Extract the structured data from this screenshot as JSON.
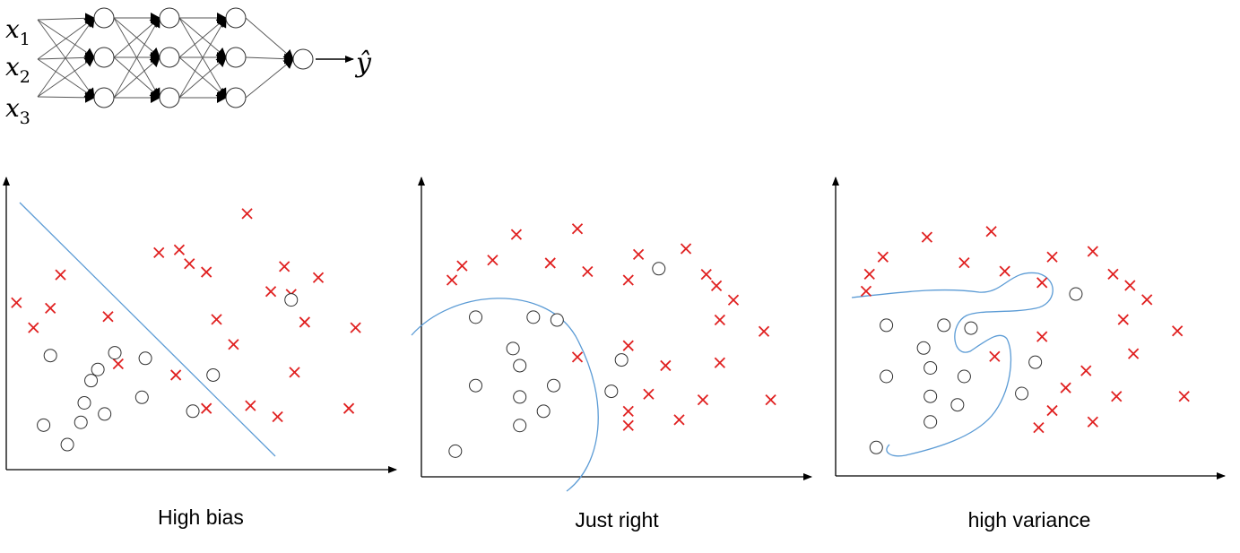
{
  "network": {
    "inputs": [
      {
        "var": "x",
        "sub": "1"
      },
      {
        "var": "x",
        "sub": "2"
      },
      {
        "var": "x",
        "sub": "3"
      }
    ],
    "output": "ŷ",
    "hidden_layer_sizes": [
      3,
      3,
      3
    ],
    "output_layer_size": 1
  },
  "panels": [
    {
      "caption": "High bias",
      "boundary": "linear",
      "crosses": [
        [
          45,
          78
        ],
        [
          16,
          70
        ],
        [
          30,
          55
        ],
        [
          51,
          79
        ],
        [
          33,
          38
        ],
        [
          54,
          74
        ],
        [
          71,
          92
        ],
        [
          59,
          71
        ],
        [
          62,
          54
        ],
        [
          78,
          64
        ],
        [
          82,
          73
        ],
        [
          92,
          69
        ],
        [
          84,
          63
        ],
        [
          88,
          53
        ],
        [
          103,
          51
        ],
        [
          67,
          45
        ],
        [
          50,
          34
        ],
        [
          85,
          35
        ],
        [
          72,
          23
        ],
        [
          101,
          22
        ],
        [
          59,
          22
        ],
        [
          80,
          19
        ],
        [
          8,
          51
        ],
        [
          3,
          60
        ],
        [
          13,
          58
        ]
      ],
      "circles": [
        [
          13,
          41
        ],
        [
          32,
          42
        ],
        [
          41,
          40
        ],
        [
          25,
          32
        ],
        [
          23,
          24
        ],
        [
          11,
          16
        ],
        [
          40,
          26
        ],
        [
          29,
          20
        ],
        [
          55,
          21
        ],
        [
          27,
          36
        ],
        [
          22,
          17
        ],
        [
          61,
          34
        ],
        [
          84,
          61
        ],
        [
          18,
          9
        ]
      ]
    },
    {
      "caption": "Just right",
      "boundary": "curved",
      "crosses": [
        [
          28,
          85
        ],
        [
          46,
          87
        ],
        [
          21,
          76
        ],
        [
          12,
          74
        ],
        [
          38,
          75
        ],
        [
          49,
          72
        ],
        [
          61,
          69
        ],
        [
          64,
          78
        ],
        [
          78,
          80
        ],
        [
          84,
          71
        ],
        [
          87,
          67
        ],
        [
          92,
          62
        ],
        [
          88,
          55
        ],
        [
          101,
          51
        ],
        [
          61,
          46
        ],
        [
          46,
          42
        ],
        [
          88,
          40
        ],
        [
          72,
          39
        ],
        [
          67,
          29
        ],
        [
          83,
          27
        ],
        [
          103,
          27
        ],
        [
          61,
          23
        ],
        [
          76,
          20
        ],
        [
          61,
          18
        ],
        [
          9,
          69
        ]
      ],
      "circles": [
        [
          16,
          56
        ],
        [
          33,
          56
        ],
        [
          40,
          55
        ],
        [
          27,
          45
        ],
        [
          29,
          39
        ],
        [
          16,
          32
        ],
        [
          39,
          32
        ],
        [
          29,
          28
        ],
        [
          59,
          41
        ],
        [
          36,
          23
        ],
        [
          70,
          73
        ],
        [
          29,
          18
        ],
        [
          10,
          9
        ],
        [
          56,
          30
        ]
      ]
    },
    {
      "caption": "high variance",
      "boundary": "wiggly",
      "crosses": [
        [
          27,
          84
        ],
        [
          46,
          86
        ],
        [
          14,
          77
        ],
        [
          10,
          71
        ],
        [
          38,
          75
        ],
        [
          50,
          72
        ],
        [
          61,
          68
        ],
        [
          64,
          77
        ],
        [
          76,
          79
        ],
        [
          82,
          71
        ],
        [
          87,
          67
        ],
        [
          92,
          62
        ],
        [
          85,
          55
        ],
        [
          101,
          51
        ],
        [
          61,
          49
        ],
        [
          47,
          42
        ],
        [
          88,
          43
        ],
        [
          74,
          37
        ],
        [
          68,
          31
        ],
        [
          83,
          28
        ],
        [
          103,
          28
        ],
        [
          64,
          23
        ],
        [
          76,
          19
        ],
        [
          60,
          17
        ],
        [
          9,
          65
        ]
      ],
      "circles": [
        [
          15,
          53
        ],
        [
          32,
          53
        ],
        [
          40,
          52
        ],
        [
          26,
          45
        ],
        [
          28,
          38
        ],
        [
          15,
          35
        ],
        [
          38,
          35
        ],
        [
          28,
          28
        ],
        [
          59,
          40
        ],
        [
          36,
          25
        ],
        [
          71,
          64
        ],
        [
          28,
          19
        ],
        [
          12,
          10
        ],
        [
          55,
          29
        ]
      ]
    }
  ],
  "colors": {
    "cross": "#e02020",
    "boundary": "#5b9bd5",
    "axis": "#000000",
    "circle_stroke": "#303030",
    "network_line": "#555555"
  }
}
